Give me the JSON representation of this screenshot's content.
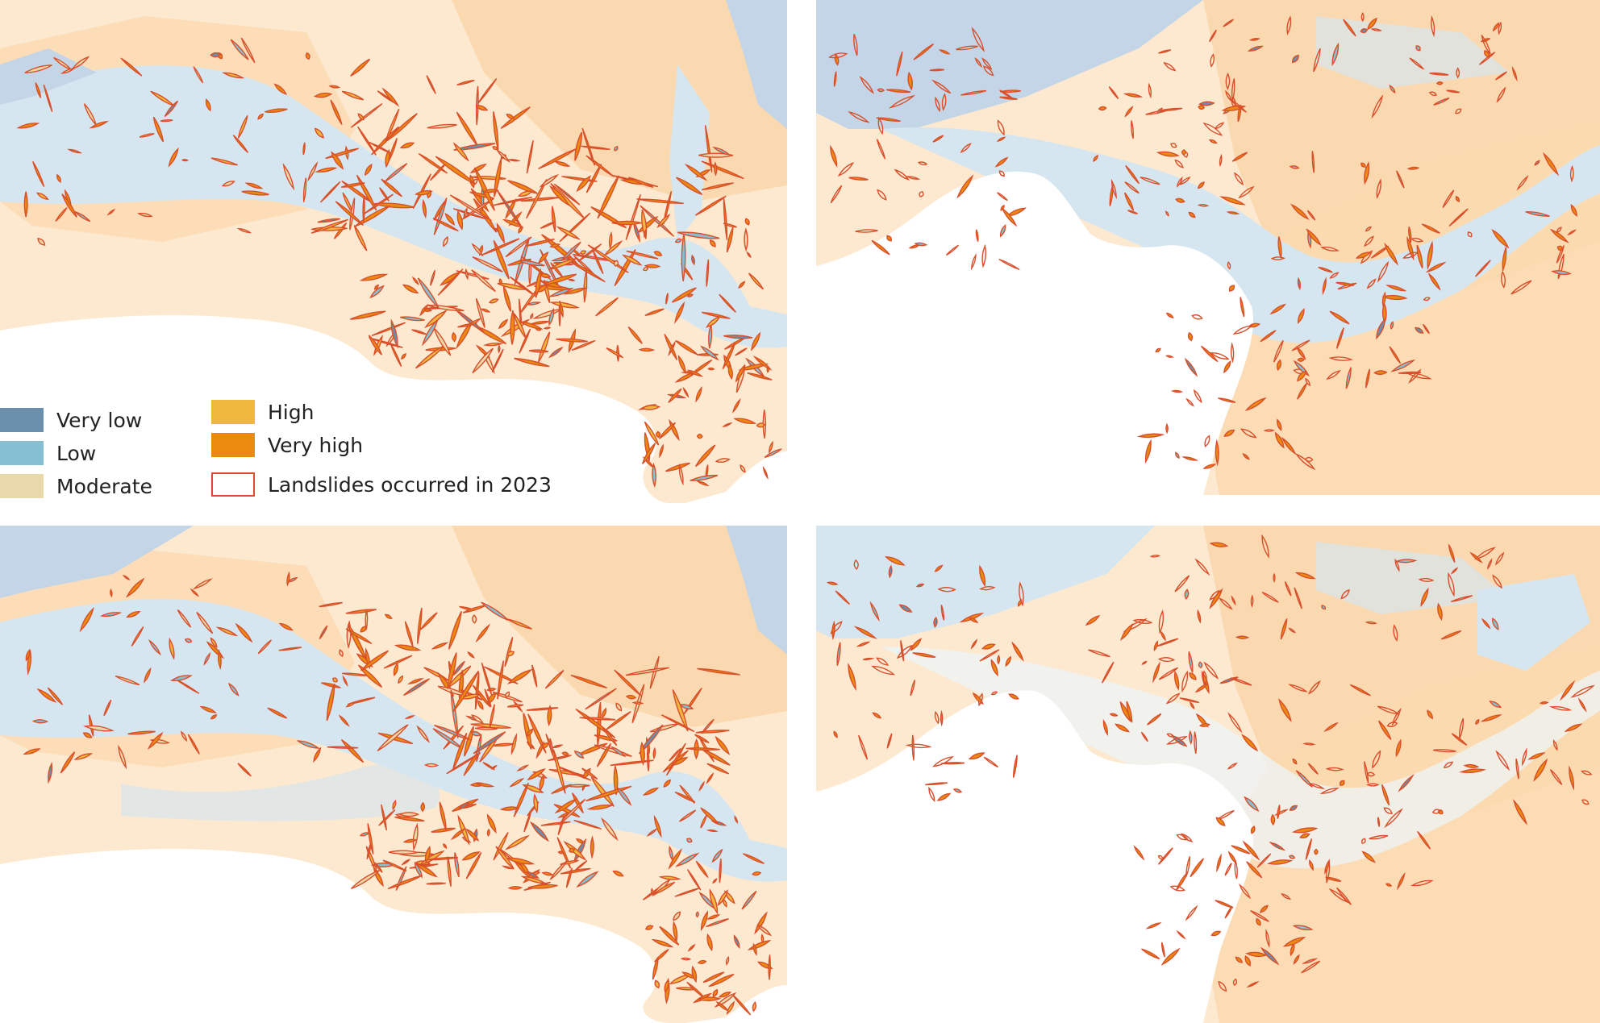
{
  "legend": {
    "items": [
      {
        "label": "Very low",
        "color": "#6a8fad",
        "kind": "fill"
      },
      {
        "label": "Low",
        "color": "#86bfd2",
        "kind": "fill"
      },
      {
        "label": "Moderate",
        "color": "#e9d8a9",
        "kind": "fill"
      },
      {
        "label": "High",
        "color": "#f0b73d",
        "kind": "fill"
      },
      {
        "label": "Very high",
        "color": "#ea8a0f",
        "kind": "fill"
      },
      {
        "label": "Landslides occurred in 2023",
        "color": "#d94f2b",
        "kind": "outline"
      }
    ]
  },
  "map_colors": {
    "land_light": "#fde9cf",
    "land_warm": "#fbd9b0",
    "valley_blue": "#d6e6f0",
    "deep_blue": "#c3d5e6",
    "sea": "#ffffff",
    "landslide_outline": "#d94f2b",
    "landslide_fill": "#ea8a0f"
  },
  "panels": [
    {
      "id": "top-left"
    },
    {
      "id": "top-right"
    },
    {
      "id": "bottom-left"
    },
    {
      "id": "bottom-right"
    }
  ]
}
